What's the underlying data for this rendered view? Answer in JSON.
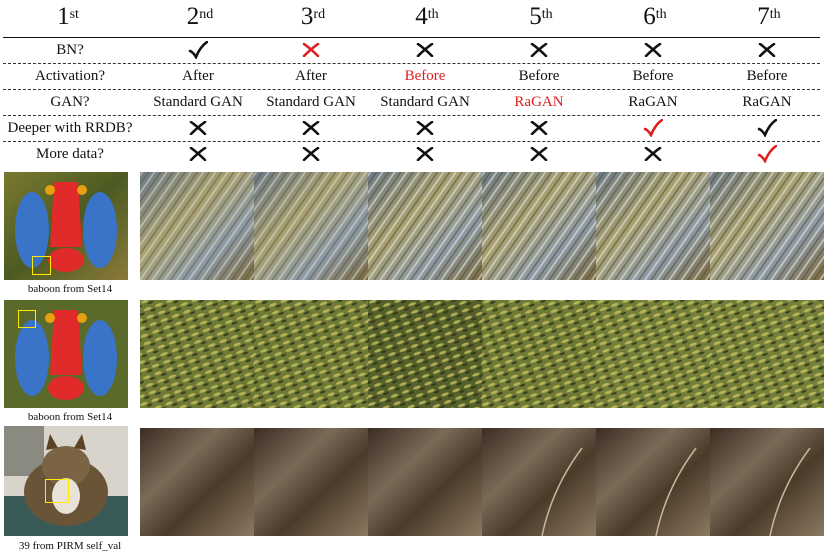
{
  "columns": [
    {
      "num": "1",
      "sup": "st"
    },
    {
      "num": "2",
      "sup": "nd"
    },
    {
      "num": "3",
      "sup": "rd"
    },
    {
      "num": "4",
      "sup": "th"
    },
    {
      "num": "5",
      "sup": "th"
    },
    {
      "num": "6",
      "sup": "th"
    },
    {
      "num": "7",
      "sup": "th"
    }
  ],
  "rows": {
    "bn": {
      "label": "BN?",
      "values": [
        "check",
        "cross-red",
        "cross",
        "cross",
        "cross",
        "cross"
      ]
    },
    "activation": {
      "label": "Activation?",
      "values": [
        "After",
        "After",
        "Before",
        "Before",
        "Before",
        "Before"
      ],
      "highlight": [
        false,
        false,
        true,
        false,
        false,
        false
      ]
    },
    "gan": {
      "label": "GAN?",
      "values": [
        "Standard GAN",
        "Standard GAN",
        "Standard GAN",
        "RaGAN",
        "RaGAN",
        "RaGAN"
      ],
      "highlight": [
        false,
        false,
        false,
        true,
        false,
        false
      ]
    },
    "rrdb": {
      "label": "Deeper with RRDB?",
      "values": [
        "cross",
        "cross",
        "cross",
        "cross",
        "check-red",
        "check"
      ]
    },
    "data": {
      "label": "More data?",
      "values": [
        "cross",
        "cross",
        "cross",
        "cross",
        "cross",
        "check-red"
      ]
    }
  },
  "captions": [
    "baboon from Set14",
    "baboon from Set14",
    "39 from PIRM self_val"
  ],
  "colors": {
    "highlight": "#e02020",
    "box": "#ffea00",
    "text": "#111111"
  }
}
